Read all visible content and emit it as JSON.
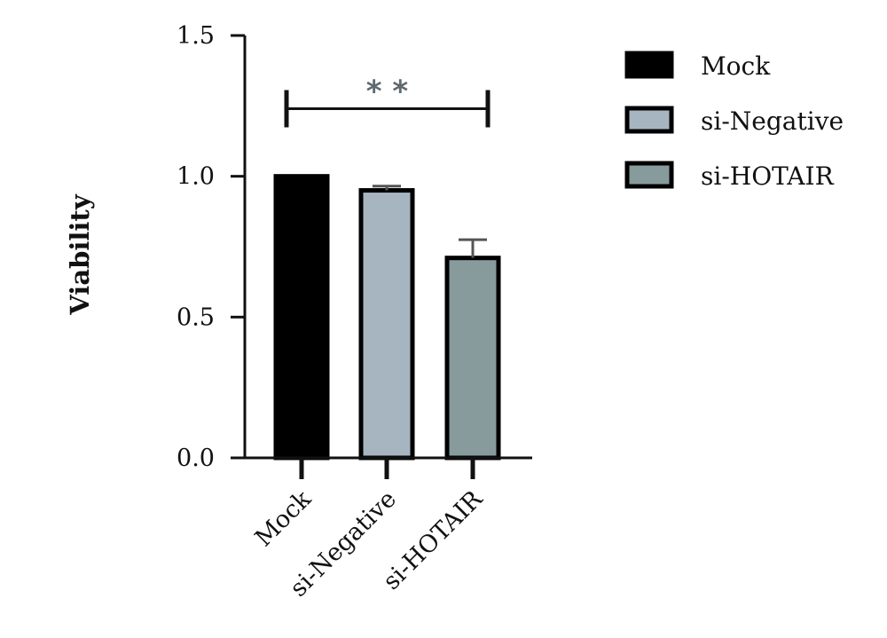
{
  "chart_data": {
    "type": "bar",
    "title": "",
    "xlabel": "",
    "ylabel": "Viability",
    "ylim": [
      0,
      1.5
    ],
    "yticks": [
      0.0,
      0.5,
      1.0,
      1.5
    ],
    "ytick_labels": [
      "0.0",
      "0.5",
      "1.0",
      "1.5"
    ],
    "categories": [
      "Mock",
      "si-Negative",
      "si-HOTAIR"
    ],
    "values": [
      1.0,
      0.95,
      0.71
    ],
    "errors": [
      0.0,
      0.015,
      0.065
    ],
    "colors": [
      "#000000",
      "#a7b5c1",
      "#879a9c"
    ],
    "legend": {
      "position": "top-right",
      "entries": [
        "Mock",
        "si-Negative",
        "si-HOTAIR"
      ]
    },
    "grid": false,
    "annotations": [
      {
        "type": "significance-bracket",
        "from": "Mock",
        "to": "si-HOTAIR",
        "label": "* *",
        "y": 1.24
      }
    ]
  }
}
